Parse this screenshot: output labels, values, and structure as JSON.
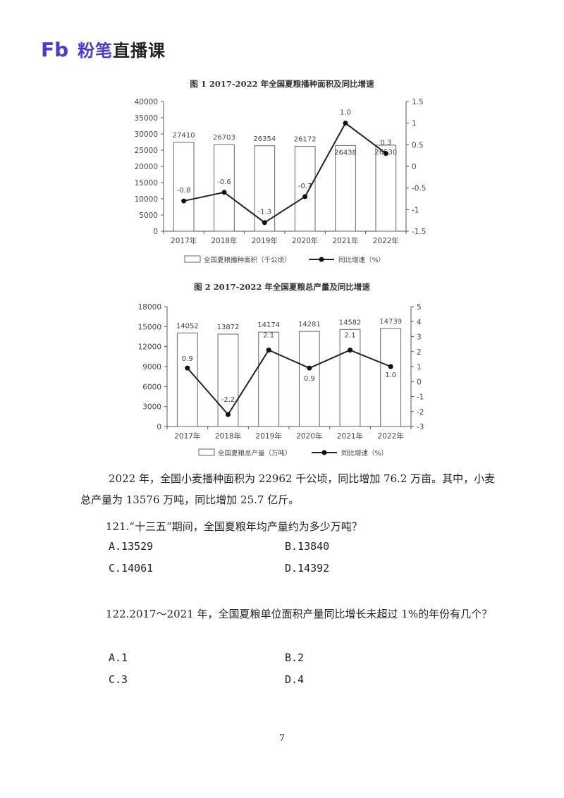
{
  "brand": {
    "logo_letters": "Fb",
    "name_highlight": "粉笔",
    "name_rest": "直播课",
    "color": "#4a3ad6"
  },
  "chart_data": [
    {
      "type": "bar",
      "title": "图 1   2017-2022 年全国夏粮播种面积及同比增速",
      "categories": [
        "2017年",
        "2018年",
        "2019年",
        "2020年",
        "2021年",
        "2022年"
      ],
      "series": [
        {
          "name": "全国夏粮播种面积（千公顷）",
          "type": "bar",
          "axis": "left",
          "values": [
            27410,
            26703,
            26354,
            26172,
            26438,
            26530
          ]
        },
        {
          "name": "同比增速（%）",
          "type": "line",
          "axis": "right",
          "values": [
            -0.8,
            -0.6,
            -1.3,
            -0.7,
            1.0,
            0.3
          ]
        }
      ],
      "value_labels": {
        "bar": [
          "27410",
          "26703",
          "26354",
          "26172",
          "26438",
          "26530"
        ],
        "line": [
          "-0.8",
          "-0.6",
          "-1.3",
          "-0.7",
          "1.0",
          "0.3"
        ]
      },
      "ylim_left": [
        0,
        40000
      ],
      "yticks_left": [
        "0",
        "5000",
        "10000",
        "15000",
        "20000",
        "25000",
        "30000",
        "35000",
        "40000"
      ],
      "ylim_right": [
        -1.5,
        1.5
      ],
      "yticks_right": [
        "-1.5",
        "-1",
        "-0.5",
        "0",
        "0.5",
        "1",
        "1.5"
      ],
      "legend_position": "bottom"
    },
    {
      "type": "bar",
      "title": "图 2   2017-2022 年全国夏粮总产量及同比增速",
      "categories": [
        "2017年",
        "2018年",
        "2019年",
        "2020年",
        "2021年",
        "2022年"
      ],
      "series": [
        {
          "name": "全国夏粮总产量（万吨）",
          "type": "bar",
          "axis": "left",
          "values": [
            14052,
            13872,
            14174,
            14281,
            14582,
            14739
          ]
        },
        {
          "name": "同比增速（%）",
          "type": "line",
          "axis": "right",
          "values": [
            0.9,
            -2.2,
            2.1,
            0.9,
            2.1,
            1.0
          ]
        }
      ],
      "value_labels": {
        "bar": [
          "14052",
          "13872",
          "14174",
          "14281",
          "14582",
          "14739"
        ],
        "line": [
          "0.9",
          "-2.2",
          "2.1",
          "0.9",
          "2.1",
          "1.0"
        ]
      },
      "ylim_left": [
        0,
        18000
      ],
      "yticks_left": [
        "0",
        "3000",
        "6000",
        "9000",
        "12000",
        "15000",
        "18000"
      ],
      "ylim_right": [
        -3,
        5
      ],
      "yticks_right": [
        "-3",
        "-2",
        "-1",
        "0",
        "1",
        "2",
        "3",
        "4",
        "5"
      ],
      "legend_position": "bottom"
    }
  ],
  "paragraph": "2022 年，全国小麦播种面积为 22962 千公顷，同比增加 76.2 万亩。其中，小麦总产量为 13576 万吨，同比增加 25.7 亿斤。",
  "questions": [
    {
      "stem": "121.“十三五”期间，全国夏粮年均产量约为多少万吨？",
      "options": [
        "A.13529",
        "B.13840",
        "C.14061",
        "D.14392"
      ]
    },
    {
      "stem": "122.2017～2021 年，全国夏粮单位面积产量同比增长未超过 1%的年份有几个？",
      "options": [
        "A.1",
        "B.2",
        "C.3",
        "D.4"
      ]
    }
  ],
  "page_number": "7"
}
